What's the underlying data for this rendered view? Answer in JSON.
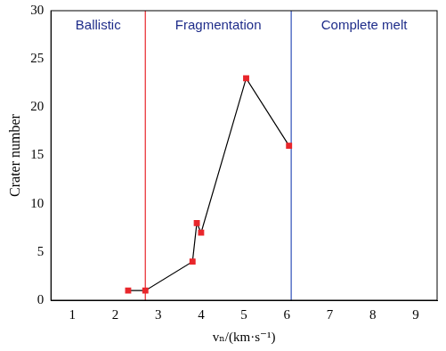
{
  "chart_data": {
    "type": "line",
    "x": [
      2.3,
      2.7,
      3.8,
      3.9,
      4.0,
      5.05,
      6.05
    ],
    "values": [
      1,
      1,
      4,
      8,
      7,
      23,
      16
    ],
    "color": "#e8262b",
    "marker": "square",
    "xlabel": "vₙ/(km·s⁻¹)",
    "ylabel": "Crater number",
    "xlim": [
      0.5,
      9.5
    ],
    "xticks": [
      1,
      2,
      3,
      4,
      5,
      6,
      7,
      8,
      9
    ],
    "ylim": [
      0,
      30
    ],
    "yticks": [
      0,
      5,
      10,
      15,
      20,
      25,
      30
    ],
    "grid": false,
    "boundaries": [
      {
        "x": 2.7,
        "color": "#e8262b"
      },
      {
        "x": 6.1,
        "color": "#2f4fb8"
      }
    ],
    "annotations": [
      {
        "text": "Ballistic",
        "x": 1.6,
        "y": 28.4
      },
      {
        "text": "Fragmentation",
        "x": 4.4,
        "y": 28.4
      },
      {
        "text": "Complete melt",
        "x": 7.8,
        "y": 28.4
      }
    ]
  }
}
